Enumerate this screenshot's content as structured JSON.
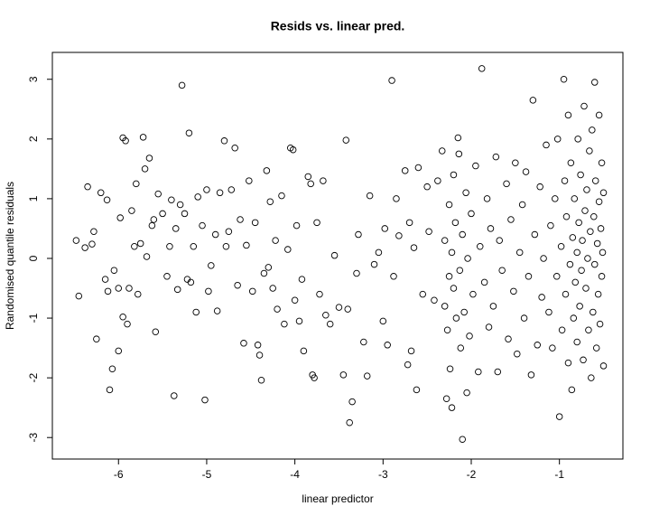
{
  "chart_data": {
    "type": "scatter",
    "title": "Resids vs. linear pred.",
    "x_label": "linear predictor",
    "y_label": "Randomised quantile residuals",
    "xlim": [
      -6.75,
      -0.28
    ],
    "ylim": [
      -3.36,
      3.45
    ],
    "xticks": [
      -6,
      -5,
      -4,
      -3,
      -2,
      -1
    ],
    "yticks": [
      -3,
      -2,
      -1,
      0,
      1,
      2,
      3
    ],
    "color": "#000000",
    "x": [
      -6.48,
      -6.45,
      -6.38,
      -6.35,
      -6.3,
      -6.28,
      -6.2,
      -6.25,
      -6.13,
      -6.15,
      -6.12,
      -6.1,
      -6.07,
      -6.05,
      -6.0,
      -6.0,
      -5.98,
      -5.95,
      -5.92,
      -5.95,
      -5.9,
      -5.88,
      -5.85,
      -5.82,
      -5.8,
      -5.78,
      -5.75,
      -5.72,
      -5.7,
      -5.68,
      -5.65,
      -5.62,
      -5.6,
      -5.58,
      -5.55,
      -5.5,
      -5.45,
      -5.42,
      -5.4,
      -5.37,
      -5.35,
      -5.33,
      -5.3,
      -5.28,
      -5.25,
      -5.22,
      -5.2,
      -5.18,
      -5.15,
      -5.12,
      -5.1,
      -5.05,
      -5.02,
      -5.0,
      -4.98,
      -4.95,
      -4.9,
      -4.88,
      -4.85,
      -4.8,
      -4.78,
      -4.75,
      -4.72,
      -4.68,
      -4.65,
      -4.62,
      -4.58,
      -4.55,
      -4.52,
      -4.48,
      -4.45,
      -4.42,
      -4.4,
      -4.38,
      -4.35,
      -4.32,
      -4.3,
      -4.28,
      -4.25,
      -4.22,
      -4.2,
      -4.15,
      -4.12,
      -4.08,
      -4.05,
      -4.02,
      -4.0,
      -3.98,
      -3.95,
      -3.92,
      -3.9,
      -3.85,
      -3.82,
      -3.8,
      -3.78,
      -3.75,
      -3.72,
      -3.68,
      -3.65,
      -3.6,
      -3.55,
      -3.5,
      -3.45,
      -3.42,
      -3.4,
      -3.38,
      -3.35,
      -3.3,
      -3.28,
      -3.22,
      -3.18,
      -3.15,
      -3.1,
      -3.05,
      -3.0,
      -2.98,
      -2.95,
      -2.9,
      -2.88,
      -2.85,
      -2.82,
      -2.75,
      -2.72,
      -2.7,
      -2.68,
      -2.65,
      -2.62,
      -2.6,
      -2.55,
      -2.5,
      -2.48,
      -2.42,
      -2.38,
      -2.33,
      -2.3,
      -2.3,
      -2.28,
      -2.27,
      -2.25,
      -2.25,
      -2.24,
      -2.22,
      -2.22,
      -2.2,
      -2.2,
      -2.18,
      -2.17,
      -2.15,
      -2.14,
      -2.13,
      -2.12,
      -2.1,
      -2.1,
      -2.08,
      -2.06,
      -2.05,
      -2.04,
      -2.02,
      -2.0,
      -1.98,
      -1.95,
      -1.92,
      -1.9,
      -1.88,
      -1.85,
      -1.82,
      -1.8,
      -1.78,
      -1.75,
      -1.72,
      -1.7,
      -1.68,
      -1.65,
      -1.6,
      -1.58,
      -1.55,
      -1.52,
      -1.5,
      -1.48,
      -1.45,
      -1.42,
      -1.4,
      -1.38,
      -1.35,
      -1.32,
      -1.3,
      -1.28,
      -1.25,
      -1.22,
      -1.2,
      -1.18,
      -1.15,
      -1.12,
      -1.1,
      -1.08,
      -1.05,
      -1.03,
      -1.02,
      -1.0,
      -0.98,
      -0.97,
      -0.95,
      -0.94,
      -0.93,
      -0.92,
      -0.9,
      -0.9,
      -0.88,
      -0.87,
      -0.86,
      -0.85,
      -0.84,
      -0.83,
      -0.82,
      -0.8,
      -0.8,
      -0.79,
      -0.78,
      -0.77,
      -0.76,
      -0.75,
      -0.74,
      -0.73,
      -0.72,
      -0.71,
      -0.7,
      -0.69,
      -0.68,
      -0.67,
      -0.66,
      -0.65,
      -0.64,
      -0.63,
      -0.62,
      -0.61,
      -0.6,
      -0.6,
      -0.59,
      -0.58,
      -0.57,
      -0.56,
      -0.55,
      -0.55,
      -0.54,
      -0.53,
      -0.52,
      -0.52,
      -0.51,
      -0.5,
      -0.5
    ],
    "values": [
      0.3,
      -0.63,
      0.18,
      1.2,
      0.24,
      0.45,
      1.1,
      -1.35,
      0.98,
      -0.35,
      -0.55,
      -2.2,
      -1.85,
      -0.2,
      -0.5,
      -1.55,
      0.68,
      2.02,
      1.97,
      -0.98,
      -1.1,
      -0.5,
      0.8,
      0.2,
      1.25,
      -0.6,
      0.25,
      2.03,
      1.5,
      0.03,
      1.68,
      0.55,
      0.65,
      -1.23,
      1.08,
      0.75,
      -0.3,
      0.2,
      0.98,
      -2.3,
      0.5,
      -0.52,
      0.9,
      2.9,
      0.75,
      -0.35,
      2.1,
      -0.4,
      0.2,
      -0.9,
      1.03,
      0.55,
      -2.37,
      1.15,
      -0.55,
      -0.12,
      0.4,
      -0.88,
      1.1,
      1.97,
      0.2,
      0.45,
      1.15,
      1.85,
      -0.45,
      0.65,
      -1.42,
      0.22,
      1.3,
      -0.55,
      0.6,
      -1.45,
      -1.62,
      -2.04,
      -0.25,
      1.47,
      -0.15,
      0.95,
      -0.5,
      0.3,
      -0.85,
      1.05,
      -1.1,
      0.15,
      1.85,
      1.82,
      -0.7,
      0.55,
      -1.05,
      -0.35,
      -1.55,
      1.37,
      1.25,
      -1.95,
      -2.0,
      0.6,
      -0.6,
      1.3,
      -0.95,
      -1.1,
      0.05,
      -0.82,
      -1.95,
      1.98,
      -0.85,
      -2.75,
      -2.4,
      -0.25,
      0.4,
      -1.4,
      -1.97,
      1.05,
      -0.1,
      0.1,
      -1.05,
      0.5,
      -1.45,
      2.98,
      -0.3,
      1.0,
      0.38,
      1.47,
      -1.78,
      0.6,
      -1.55,
      0.18,
      -2.2,
      1.52,
      -0.6,
      1.2,
      0.45,
      -0.7,
      1.3,
      1.8,
      0.3,
      -0.8,
      -2.35,
      -1.2,
      0.9,
      -0.3,
      -1.85,
      0.1,
      -2.5,
      1.4,
      -0.5,
      0.6,
      -1.0,
      2.02,
      1.75,
      -0.2,
      -1.5,
      0.4,
      -3.03,
      -0.9,
      1.1,
      -2.25,
      0.0,
      -1.3,
      0.75,
      -0.6,
      1.55,
      -1.9,
      0.2,
      3.18,
      -0.4,
      1.0,
      -1.15,
      0.5,
      -0.8,
      1.7,
      -1.9,
      0.3,
      -0.2,
      1.25,
      -1.35,
      0.65,
      -0.55,
      1.6,
      -1.6,
      0.1,
      0.9,
      -1.0,
      1.45,
      -0.3,
      -1.95,
      2.65,
      0.4,
      -1.45,
      1.2,
      -0.65,
      0.0,
      1.9,
      -0.9,
      0.55,
      -1.5,
      1.0,
      -0.3,
      2.0,
      -2.65,
      0.2,
      -1.2,
      3.0,
      1.3,
      -0.6,
      0.7,
      -1.75,
      2.4,
      -0.1,
      1.6,
      -2.2,
      0.35,
      -1.0,
      1.0,
      -0.4,
      0.1,
      -1.4,
      2.0,
      0.6,
      -0.8,
      1.4,
      -0.2,
      0.3,
      -1.7,
      2.55,
      0.8,
      -0.5,
      1.15,
      0.0,
      -1.2,
      1.8,
      0.45,
      -2.0,
      2.15,
      -0.9,
      0.7,
      -0.1,
      2.95,
      1.3,
      -1.5,
      0.25,
      -0.6,
      0.95,
      2.4,
      -1.1,
      0.5,
      1.6,
      -0.3,
      0.1,
      -1.8,
      1.1
    ]
  }
}
